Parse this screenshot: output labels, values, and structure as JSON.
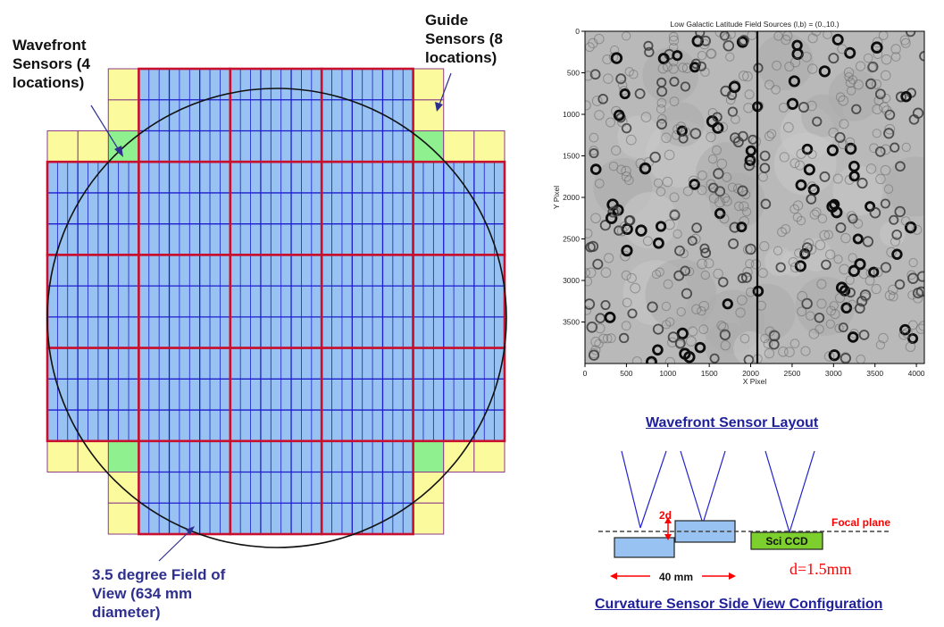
{
  "focal_plane": {
    "wavefront_label": "Wavefront\nSensors (4\nlocations)",
    "guide_label": "Guide\nSensors (8\nlocations)",
    "fov_label": "3.5 degree Field of\nView (634 mm\ndiameter)"
  },
  "plot": {
    "title": "Low Galactic Latitude Field Sources (l,b) = (0.,10.)",
    "xlabel": "X Pixel",
    "ylabel": "Y Pixel",
    "x_ticks": [
      "0",
      "500",
      "1000",
      "1500",
      "2000",
      "2500",
      "3000",
      "3500",
      "4000"
    ],
    "y_ticks": [
      "0",
      "500",
      "1000",
      "1500",
      "2000",
      "2500",
      "3000",
      "3500"
    ]
  },
  "wavefront_layout": {
    "title": "Wavefront Sensor Layout",
    "offset_label": "2d",
    "focal_plane_label": "Focal plane",
    "ccd_label": "Sci CCD",
    "width_label": "40 mm",
    "d_label": "d=1.5mm",
    "subtitle": "Curvature Sensor Side View Configuration"
  },
  "colors": {
    "raft_border": "#c8102e",
    "ccd_fill": "#97c2f2",
    "ccd_grid": "#1d1dcc",
    "guide_fill": "#fbfa9c",
    "wavefront_fill": "#8ff08f",
    "label_blue": "#2e2f8f",
    "focal_red": "#ff0000",
    "ccd_green": "#7ccf2c"
  }
}
